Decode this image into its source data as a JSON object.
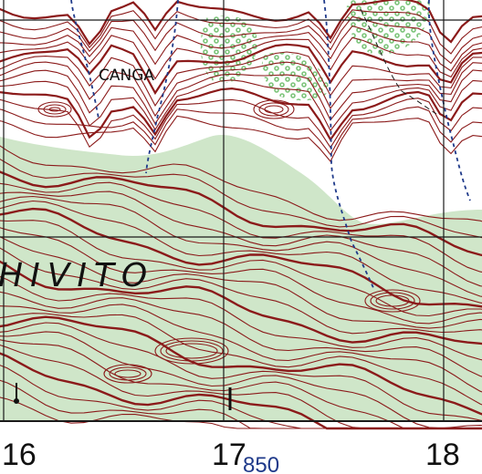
{
  "map": {
    "place_labels": {
      "canga": "CANGA",
      "chivito_fragment": "HIVITO"
    },
    "grid_labels": {
      "easting_16": "16",
      "easting_17": "17",
      "easting_17_small": "850",
      "easting_18": "18"
    },
    "colors": {
      "contour": "#8b1a1a",
      "woodland_tint": "#cfe6c9",
      "scrub_dots": "#7cc47a",
      "stream": "#1f3a8a",
      "grid_line": "#1a1a1a",
      "label_black": "#111111",
      "label_blue": "#1f3a8a"
    },
    "symbols": [
      "contour-lines",
      "intermittent-stream",
      "woodland-tint",
      "scrub-dot-pattern",
      "utm-grid"
    ]
  }
}
